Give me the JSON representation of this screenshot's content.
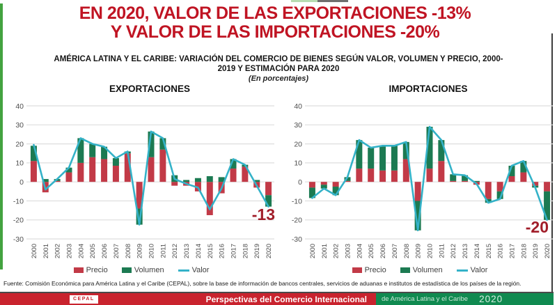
{
  "slide": {
    "title_line1": "EN 2020, VALOR DE LAS EXPORTACIONES -13%",
    "title_line2": "Y VALOR DE LAS IMPORTACIONES -20%",
    "subtitle_line1": "AMÉRICA LATINA Y EL CARIBE: VARIACIÓN DEL COMERCIO DE BIENES SEGÚN VALOR, VOLUMEN Y PRECIO, 2000-",
    "subtitle_line2": "2019 Y ESTIMACIÓN PARA 2020",
    "unit_note": "(En porcentajes)"
  },
  "colors": {
    "title_red": "#c01423",
    "annotation_red": "#a11d29",
    "bar_precio": "#c23a47",
    "bar_volumen": "#1c7a52",
    "line_valor": "#34b2c8",
    "grid": "#dedede",
    "axis_text": "#4d4d4d",
    "footer_red": "#c9232e",
    "footer_green": "#108a50"
  },
  "legend": {
    "precio": "Precio",
    "volumen": "Volumen",
    "valor": "Valor"
  },
  "chart_data": [
    {
      "type": "bar",
      "title": "EXPORTACIONES",
      "categories": [
        "2000",
        "2001",
        "2002",
        "2003",
        "2004",
        "2005",
        "2006",
        "2007",
        "2008",
        "2009",
        "2010",
        "2011",
        "2012",
        "2013",
        "2014",
        "2015",
        "2016",
        "2017",
        "2018",
        "2019",
        "2020"
      ],
      "series": [
        {
          "name": "Precio",
          "type": "bar",
          "color": "#c23a47",
          "values": [
            11,
            -5.5,
            0.5,
            5,
            10,
            13,
            12,
            8.5,
            15,
            -14,
            13,
            17,
            -2,
            -2,
            -5,
            -17.5,
            -6,
            7,
            8,
            -3,
            -7
          ]
        },
        {
          "name": "Volumen",
          "type": "bar",
          "color": "#1c7a52",
          "values": [
            8,
            1.5,
            1,
            2.5,
            13,
            7,
            6.5,
            4,
            1,
            -8.5,
            13.5,
            6,
            3.5,
            1,
            2,
            3,
            2.5,
            5,
            1,
            1,
            -6
          ]
        },
        {
          "name": "Valor",
          "type": "line",
          "color": "#34b2c8",
          "values": [
            19.5,
            -4,
            1.5,
            7.5,
            23,
            20,
            18.5,
            12.5,
            16,
            -22.5,
            26.5,
            23,
            1.5,
            -1,
            -3,
            -14.5,
            -3.5,
            12,
            9,
            -2,
            -13
          ]
        }
      ],
      "ylim": [
        -30,
        40
      ],
      "yticks": [
        40,
        30,
        20,
        10,
        0,
        -10,
        -20,
        -30
      ],
      "grid": true,
      "legend_position": "bottom",
      "annotation": {
        "text": "-13",
        "x": 389,
        "y": 176
      }
    },
    {
      "type": "bar",
      "title": "IMPORTACIONES",
      "categories": [
        "2000",
        "2001",
        "2002",
        "2003",
        "2004",
        "2005",
        "2006",
        "2007",
        "2008",
        "2009",
        "2010",
        "2011",
        "2012",
        "2013",
        "2014",
        "2015",
        "2016",
        "2017",
        "2018",
        "2019",
        "2020"
      ],
      "series": [
        {
          "name": "Precio",
          "type": "bar",
          "color": "#c23a47",
          "values": [
            -3,
            -1.5,
            -2.5,
            0.5,
            7,
            7,
            6,
            6,
            12,
            -10,
            7,
            11,
            0.5,
            0.5,
            -1.5,
            -9,
            -5,
            3,
            5,
            -2,
            -5
          ]
        },
        {
          "name": "Volumen",
          "type": "bar",
          "color": "#1c7a52",
          "values": [
            -5.5,
            -2,
            -4.5,
            2,
            15,
            11,
            13,
            13,
            9,
            -15.5,
            22,
            11,
            3.5,
            3,
            0.5,
            -2,
            -4,
            5.5,
            6,
            -1,
            -15
          ]
        },
        {
          "name": "Valor",
          "type": "line",
          "color": "#34b2c8",
          "values": [
            -8.5,
            -3.5,
            -7,
            2.5,
            22,
            18,
            19,
            19,
            21,
            -25.5,
            29,
            22,
            4,
            3.5,
            -1,
            -11,
            -9,
            8.5,
            11,
            -3,
            -20
          ]
        }
      ],
      "ylim": [
        -30,
        40
      ],
      "yticks": [
        40,
        30,
        20,
        10,
        0,
        -10,
        -20,
        -30
      ],
      "grid": true,
      "legend_position": "bottom",
      "annotation": {
        "text": "-20",
        "x": 382,
        "y": 194
      }
    }
  ],
  "footer": {
    "source": "Fuente: Comisión Económica para América Latina y el Caribe (CEPAL), sobre la base de información de bancos centrales, servicios de aduanas e institutos de estadística de los países de la región."
  },
  "bottom_bar": {
    "logo": "CEPAL",
    "title": "Perspectivas del Comercio Internacional",
    "subtitle": "de América Latina y el Caribe",
    "year": "2020"
  }
}
